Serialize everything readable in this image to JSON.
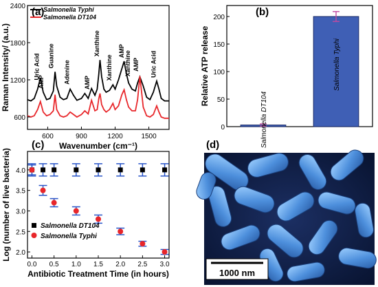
{
  "panels": {
    "a": {
      "label": "(a)"
    },
    "b": {
      "label": "(b)"
    },
    "c": {
      "label": "(c)"
    },
    "d": {
      "label": "(d)",
      "scalebar": "1000 nm"
    }
  },
  "colors": {
    "black_series": "#000000",
    "red_series": "#e8262a",
    "bar": "#3f5fb5",
    "errorbar": "#c24aa0",
    "c_err": "#2a55c8",
    "micrograph_bg": "#0d1a3a",
    "bacteria": "#5aa0e6"
  },
  "chart_data": [
    {
      "panel": "a",
      "type": "line",
      "xlabel": "Wavenumber (cm⁻¹)",
      "ylabel": "Raman Intensity/ (a.u.)",
      "xlim": [
        420,
        1680
      ],
      "ylim": [
        400,
        2400
      ],
      "xticks": [
        600,
        900,
        1200,
        1500
      ],
      "yticks": [
        600,
        1200,
        1800,
        2400
      ],
      "legend": [
        "Salmonella Typhi",
        "Salmonella DT104"
      ],
      "legend_position": "top-left",
      "series": [
        {
          "name": "Salmonella Typhi",
          "color": "#000000",
          "x": [
            420,
            450,
            480,
            510,
            535,
            560,
            590,
            620,
            650,
            665,
            680,
            710,
            740,
            770,
            800,
            830,
            860,
            900,
            930,
            960,
            990,
            1020,
            1040,
            1055,
            1065,
            1080,
            1100,
            1120,
            1150,
            1180,
            1200,
            1230,
            1260,
            1280,
            1300,
            1320,
            1350,
            1380,
            1400,
            1420,
            1450,
            1480,
            1510,
            1540,
            1570,
            1590,
            1610,
            1640,
            1680
          ],
          "y": [
            880,
            860,
            900,
            1050,
            1230,
            1000,
            880,
            900,
            1020,
            1330,
            1100,
            920,
            880,
            900,
            1050,
            950,
            870,
            900,
            980,
            900,
            1060,
            950,
            1050,
            1300,
            1520,
            1250,
            1050,
            1000,
            1030,
            1120,
            1050,
            1200,
            1380,
            1500,
            1300,
            1150,
            1050,
            1020,
            1150,
            1250,
            1100,
            920,
            880,
            1000,
            1180,
            1050,
            900,
            860,
            860
          ]
        },
        {
          "name": "Salmonella DT104",
          "color": "#e8262a",
          "x": [
            420,
            450,
            480,
            510,
            535,
            560,
            590,
            620,
            650,
            665,
            680,
            710,
            740,
            770,
            800,
            830,
            860,
            900,
            930,
            960,
            990,
            1020,
            1040,
            1055,
            1065,
            1080,
            1100,
            1120,
            1150,
            1180,
            1200,
            1230,
            1260,
            1280,
            1300,
            1320,
            1350,
            1380,
            1400,
            1420,
            1450,
            1480,
            1510,
            1540,
            1570,
            1590,
            1610,
            1640,
            1680
          ],
          "y": [
            620,
            600,
            620,
            720,
            850,
            680,
            620,
            640,
            700,
            960,
            720,
            620,
            600,
            620,
            680,
            640,
            600,
            640,
            700,
            650,
            870,
            700,
            720,
            900,
            980,
            800,
            720,
            680,
            720,
            820,
            720,
            780,
            960,
            1040,
            880,
            760,
            700,
            700,
            880,
            1260,
            760,
            620,
            600,
            640,
            780,
            680,
            600,
            580,
            580
          ]
        }
      ],
      "annotations": [
        {
          "text": "Uric Acid",
          "x": 520,
          "y": 1150
        },
        {
          "text": "AMP",
          "x": 560,
          "y": 1010
        },
        {
          "text": "Guanine",
          "x": 650,
          "y": 1340
        },
        {
          "text": "Adenine",
          "x": 790,
          "y": 1080
        },
        {
          "text": "AMP",
          "x": 970,
          "y": 1000
        },
        {
          "text": "Xanthine",
          "x": 1055,
          "y": 1530
        },
        {
          "text": "Xanthine",
          "x": 1165,
          "y": 1140
        },
        {
          "text": "AMP",
          "x": 1275,
          "y": 1510
        },
        {
          "text": "Xanthine",
          "x": 1330,
          "y": 1210
        },
        {
          "text": "AMP",
          "x": 1405,
          "y": 1290
        },
        {
          "text": "Uric Acid",
          "x": 1560,
          "y": 1190
        }
      ]
    },
    {
      "panel": "b",
      "type": "bar",
      "ylabel": "Relative ATP release",
      "ylim": [
        0,
        220
      ],
      "yticks": [
        0,
        50,
        100,
        150,
        200
      ],
      "categories": [
        "Salmonella DT104",
        "Salmonella Typhi"
      ],
      "values": [
        3,
        200
      ],
      "errors": [
        2,
        9
      ]
    },
    {
      "panel": "c",
      "type": "scatter",
      "xlabel": "Antibiotic Treatment Time (in hours)",
      "ylabel": "Log (number of live bacteria)",
      "xlim": [
        -0.1,
        3.1
      ],
      "ylim": [
        1.85,
        4.45
      ],
      "xticks": [
        0.0,
        0.5,
        1.0,
        1.5,
        2.0,
        2.5,
        3.0
      ],
      "yticks": [
        2.0,
        2.5,
        3.0,
        3.5,
        4.0
      ],
      "legend": [
        "Salmonella DT104",
        "Salmonella Typhi"
      ],
      "legend_position": "bottom-left",
      "series": [
        {
          "name": "Salmonella DT104",
          "marker": "square",
          "color": "#000000",
          "x": [
            0.0,
            0.25,
            0.5,
            1.0,
            1.5,
            2.0,
            2.5,
            3.0
          ],
          "y": [
            4.0,
            4.0,
            4.0,
            4.0,
            4.0,
            4.0,
            4.0,
            4.0
          ],
          "err": [
            0.15,
            0.15,
            0.15,
            0.15,
            0.15,
            0.15,
            0.15,
            0.15
          ]
        },
        {
          "name": "Salmonella Typhi",
          "marker": "circle",
          "color": "#e8262a",
          "x": [
            0.0,
            0.25,
            0.5,
            1.0,
            1.5,
            2.0,
            2.5,
            3.0
          ],
          "y": [
            4.0,
            3.5,
            3.2,
            3.0,
            2.8,
            2.5,
            2.2,
            2.0
          ],
          "err": [
            0.12,
            0.12,
            0.1,
            0.1,
            0.1,
            0.08,
            0.06,
            0.06
          ]
        }
      ]
    }
  ]
}
